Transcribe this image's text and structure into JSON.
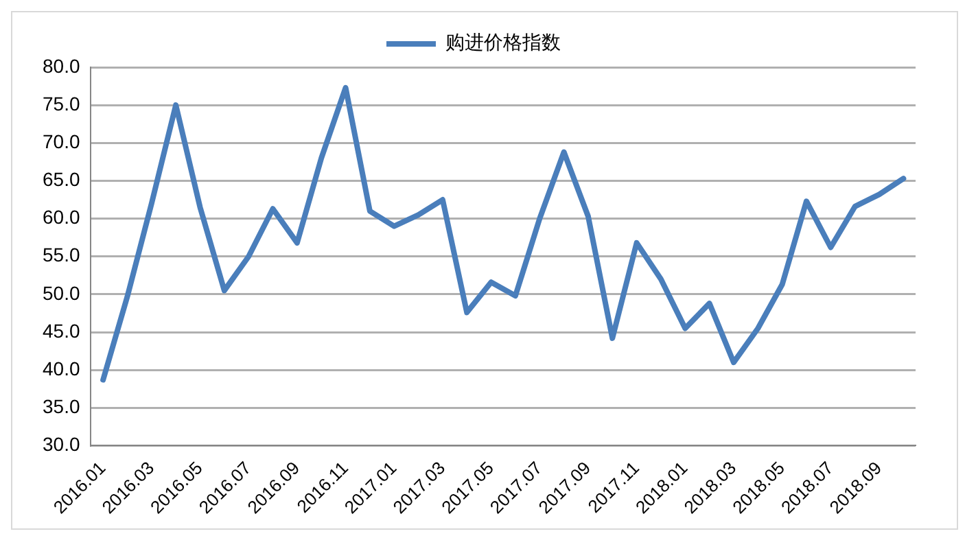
{
  "chart_data": {
    "type": "line",
    "categories": [
      "2016.01",
      null,
      "2016.03",
      null,
      "2016.05",
      null,
      "2016.07",
      null,
      "2016.09",
      null,
      "2016.11",
      null,
      "2017.01",
      null,
      "2017.03",
      null,
      "2017.05",
      null,
      "2017.07",
      null,
      "2017.09",
      null,
      "2017.11",
      null,
      "2018.01",
      null,
      "2018.03",
      null,
      "2018.05",
      null,
      "2018.07",
      null,
      "2018.09",
      null
    ],
    "series": [
      {
        "name": "购进价格指数",
        "color": "#4a7ebb",
        "values": [
          38.7,
          49.7,
          62.0,
          75.0,
          61.5,
          50.5,
          55.0,
          61.3,
          56.8,
          68.0,
          77.3,
          61.0,
          59.0,
          60.5,
          62.5,
          47.6,
          51.6,
          49.8,
          60.0,
          68.8,
          60.3,
          44.2,
          56.8,
          52.0,
          45.5,
          48.8,
          41.0,
          45.5,
          51.3,
          62.3,
          56.2,
          61.6,
          63.2,
          65.3
        ]
      }
    ],
    "ylim": [
      30,
      80
    ],
    "yticks": [
      {
        "value": 30,
        "label": "30.0"
      },
      {
        "value": 35,
        "label": "35.0"
      },
      {
        "value": 40,
        "label": "40.0"
      },
      {
        "value": 45,
        "label": "45.0"
      },
      {
        "value": 50,
        "label": "50.0"
      },
      {
        "value": 55,
        "label": "55.0"
      },
      {
        "value": 60,
        "label": "60.0"
      },
      {
        "value": 65,
        "label": "65.0"
      },
      {
        "value": 70,
        "label": "70.0"
      },
      {
        "value": 75,
        "label": "75.0"
      },
      {
        "value": 80,
        "label": "80.0"
      }
    ],
    "grid": "y",
    "legend": "top",
    "marker": "none",
    "line_style": "solid"
  }
}
